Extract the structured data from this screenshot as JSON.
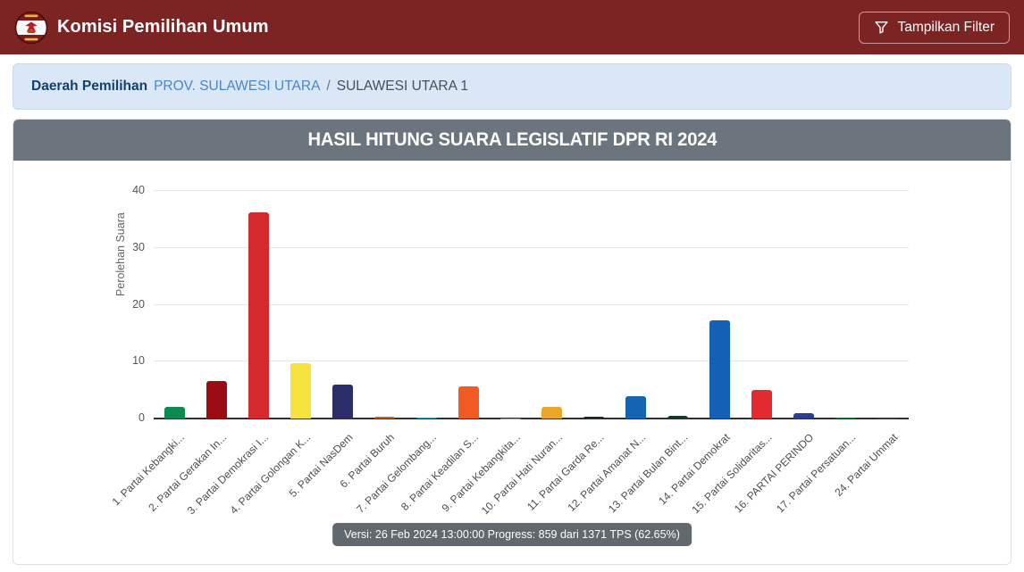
{
  "header": {
    "title": "Komisi Pemilihan Umum",
    "filter_button": "Tampilkan Filter"
  },
  "breadcrumb": {
    "label": "Daerah Pemilihan",
    "province_link": "PROV. SULAWESI UTARA",
    "separator": "/",
    "current": "SULAWESI UTARA 1"
  },
  "panel": {
    "title": "HASIL HITUNG SUARA LEGISLATIF DPR RI 2024"
  },
  "footer_badge": "Versi: 26 Feb 2024 13:00:00 Progress: 859 dari 1371 TPS (62.65%)",
  "colors": {
    "header_bg": "#7b2423",
    "breadcrumb_bg": "#d9e7f6",
    "panel_header_bg": "#6c757d",
    "link_blue": "#4a86c9",
    "breadcrumb_label_blue": "#14406e"
  },
  "chart_data": {
    "type": "bar",
    "title": "HASIL HITUNG SUARA LEGISLATIF DPR RI 2024",
    "xlabel": "",
    "ylabel": "Perolehan Suara",
    "yticks": [
      0,
      10,
      20,
      30,
      40
    ],
    "ylim": [
      0,
      42.8
    ],
    "grid": true,
    "legend": false,
    "categories": [
      "1. Partai Kebangki...",
      "2. Partai Gerakan In...",
      "3. Partai Demokrasi I...",
      "4. Partai Golongan K...",
      "5. Partai NasDem",
      "6. Partai Buruh",
      "7. Partai Gelombang...",
      "8. Partai Keadilan S...",
      "9. Partai Kebangkita...",
      "10. Partai Hati Nuran...",
      "11. Partai Garda Re...",
      "12. Partai Amanat N...",
      "13. Partai Bulan Bint...",
      "14. Partai Demokrat",
      "15. Partai Solidaritas...",
      "16. PARTAI PERINDO",
      "17. Partai Persatuan...",
      "24. Partai Ummat"
    ],
    "values": [
      2.0,
      6.6,
      36.3,
      9.7,
      6.0,
      0.25,
      0.2,
      5.6,
      0.05,
      2.0,
      0.3,
      3.9,
      0.4,
      17.3,
      5.0,
      0.9,
      0.2,
      0.05
    ],
    "bar_colors": [
      "#0d8a4d",
      "#9b0d12",
      "#d42a2e",
      "#f5e23d",
      "#2b2d68",
      "#c56a1b",
      "#2e9cb8",
      "#f15a24",
      "#9aa0a6",
      "#eca72b",
      "#1c2a1e",
      "#1464b3",
      "#153a22",
      "#1360b4",
      "#e22b30",
      "#2c3e91",
      "#1d7a37",
      "#3d3d7a"
    ]
  }
}
